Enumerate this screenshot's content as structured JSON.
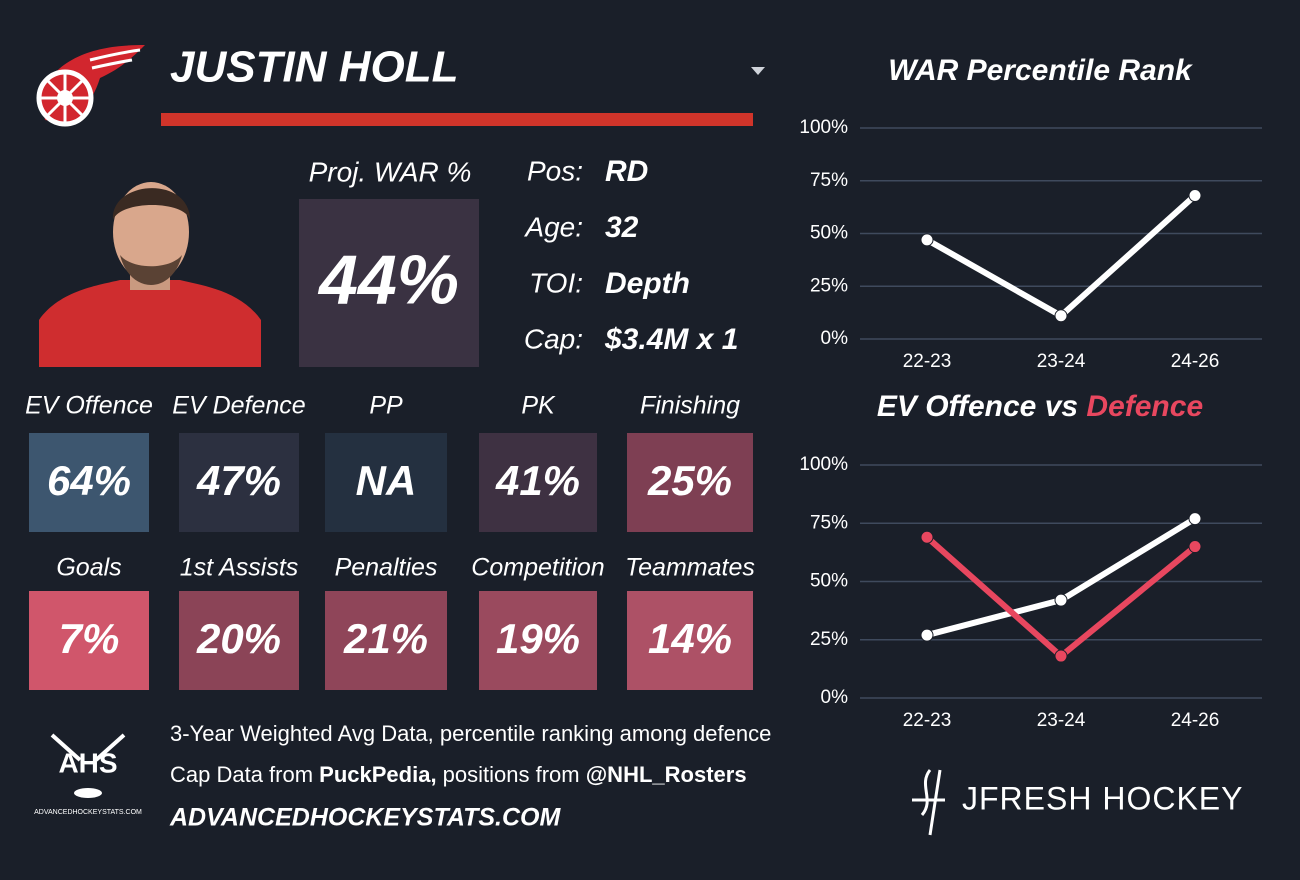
{
  "header": {
    "name": "JUSTIN HOLL"
  },
  "projection": {
    "label": "Proj. WAR %",
    "value": "44%",
    "color": "#3a3242"
  },
  "info": [
    {
      "label": "Pos:",
      "value": "RD"
    },
    {
      "label": "Age:",
      "value": "32"
    },
    {
      "label": "TOI:",
      "value": "Depth"
    },
    {
      "label": "Cap:",
      "value": "$3.4M x 1"
    }
  ],
  "tiles": [
    {
      "label": "EV Offence",
      "value": "64%",
      "color": "#3d566f"
    },
    {
      "label": "EV Defence",
      "value": "47%",
      "color": "#2c3040"
    },
    {
      "label": "PP",
      "value": "NA",
      "color": "#243040"
    },
    {
      "label": "PK",
      "value": "41%",
      "color": "#3e3142"
    },
    {
      "label": "Finishing",
      "value": "25%",
      "color": "#7e3f53"
    },
    {
      "label": "Goals",
      "value": "7%",
      "color": "#d0566b"
    },
    {
      "label": "1st Assists",
      "value": "20%",
      "color": "#8b4457"
    },
    {
      "label": "Penalties",
      "value": "21%",
      "color": "#8f4559"
    },
    {
      "label": "Competition",
      "value": "19%",
      "color": "#9a4a5e"
    },
    {
      "label": "Teammates",
      "value": "14%",
      "color": "#ad5166"
    }
  ],
  "footer": {
    "lines": [
      [
        {
          "text": "3-Year Weighted Avg Data, percentile ranking among defence"
        }
      ],
      [
        {
          "text": "Cap Data from "
        },
        {
          "text": "PuckPedia,",
          "bold": true
        },
        {
          "text": " positions from "
        },
        {
          "text": "@NHL_Rosters",
          "bold": true
        }
      ]
    ],
    "site": "ADVANCEDHOCKEYSTATS.COM"
  },
  "logos": {
    "ahs": "AHS",
    "ahs_sub": "ADVANCEDHOCKEYSTATS.COM",
    "brand": "JFRESH HOCKEY"
  },
  "chart_data": [
    {
      "type": "line",
      "title_parts": [
        {
          "text": "WAR Percentile Rank",
          "color": "#ffffff"
        }
      ],
      "categories": [
        "22-23",
        "23-24",
        "24-26"
      ],
      "series": [
        {
          "color": "#ffffff",
          "values": [
            47,
            11,
            68
          ]
        }
      ],
      "ylim": [
        0,
        100
      ],
      "yticks": [
        {
          "value": 0,
          "label": "0%"
        },
        {
          "value": 25,
          "label": "25%"
        },
        {
          "value": 50,
          "label": "50%"
        },
        {
          "value": 75,
          "label": "75%"
        },
        {
          "value": 100,
          "label": "100%"
        }
      ],
      "grid": true
    },
    {
      "type": "line",
      "title_parts": [
        {
          "text": "EV Offence vs ",
          "color": "#ffffff"
        },
        {
          "text": "Defence",
          "color": "#e8475f"
        }
      ],
      "categories": [
        "22-23",
        "23-24",
        "24-26"
      ],
      "series": [
        {
          "color": "#ffffff",
          "values": [
            27,
            42,
            77
          ]
        },
        {
          "color": "#e8475f",
          "values": [
            69,
            18,
            65
          ]
        }
      ],
      "ylim": [
        0,
        100
      ],
      "yticks": [
        {
          "value": 0,
          "label": "0%"
        },
        {
          "value": 25,
          "label": "25%"
        },
        {
          "value": 50,
          "label": "50%"
        },
        {
          "value": 75,
          "label": "75%"
        },
        {
          "value": 100,
          "label": "100%"
        }
      ],
      "grid": true
    }
  ]
}
